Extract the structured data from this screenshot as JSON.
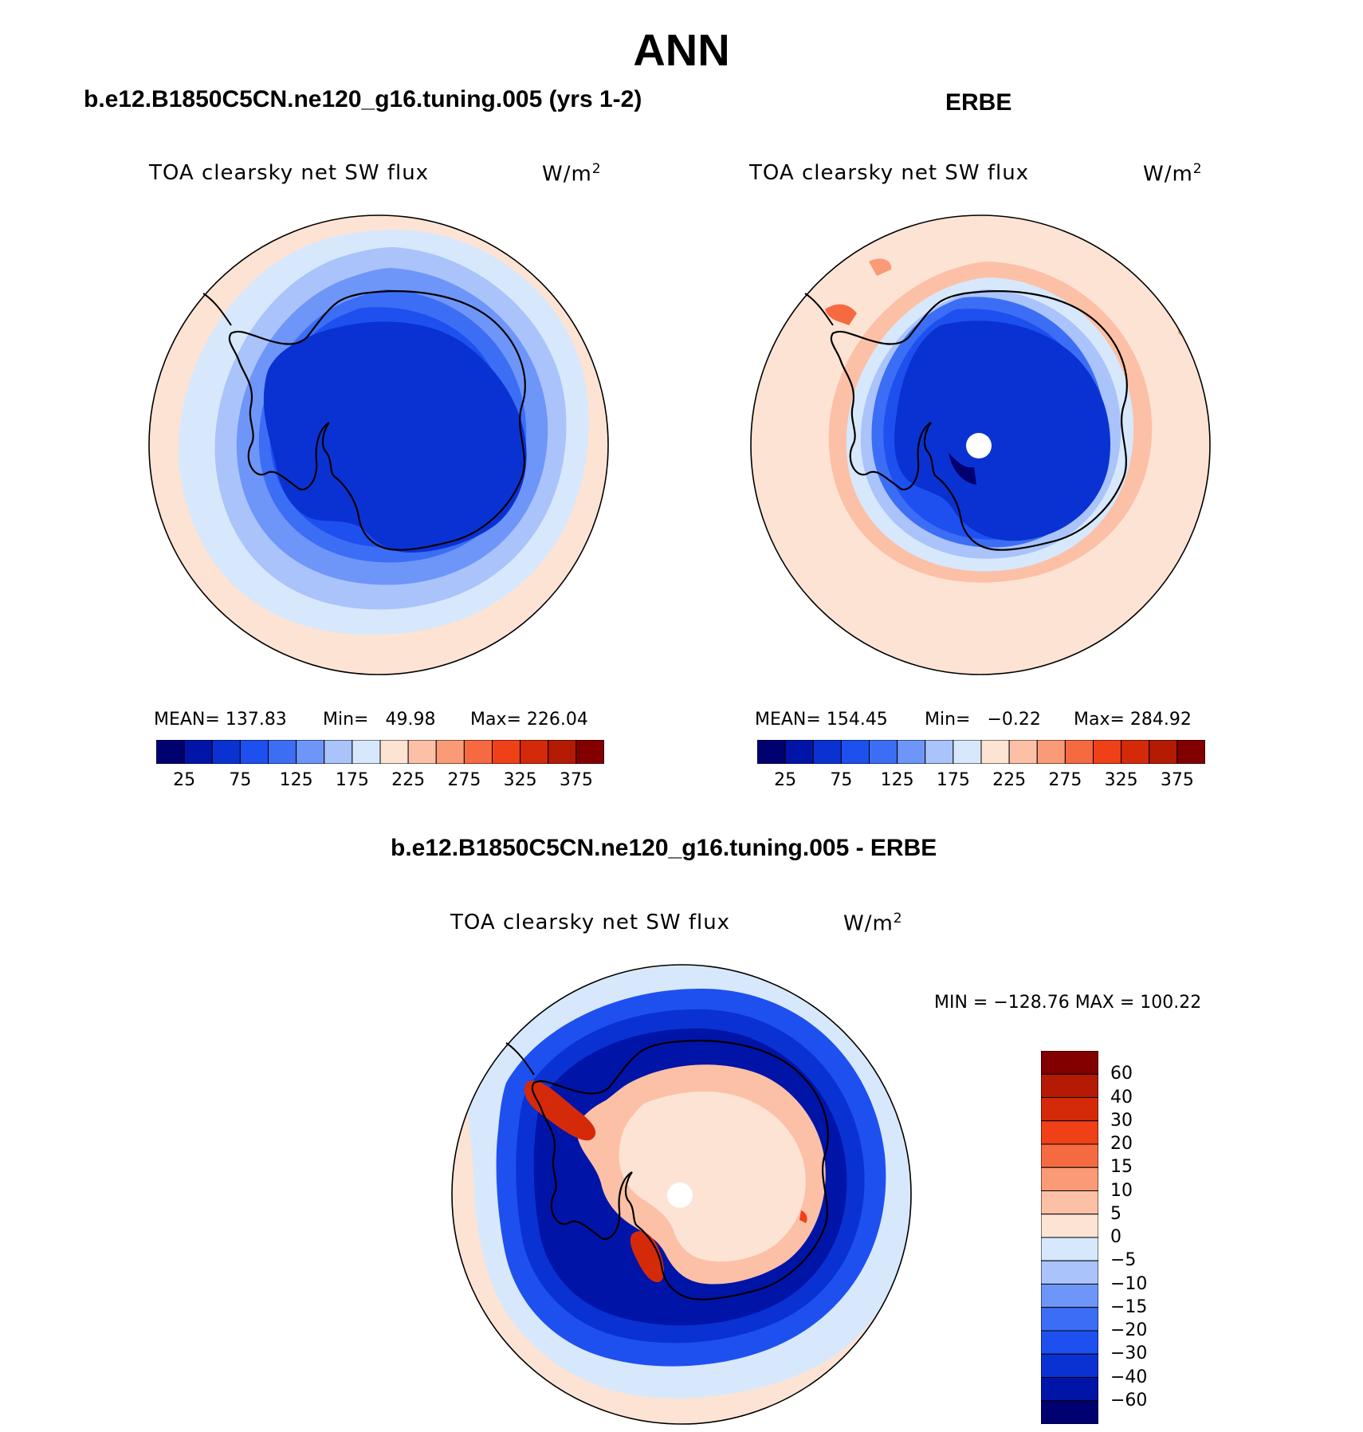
{
  "figure": {
    "title": "ANN"
  },
  "panels": {
    "model": {
      "heading": "b.e12.B1850C5CN.ne120_g16.tuning.005 (yrs 1-2)",
      "variable": "TOA clearsky net SW flux",
      "units_base": "W/m",
      "units_exp": "2",
      "mean_label": "MEAN=",
      "mean_value": "137.83",
      "min_label": "Min=",
      "min_value": "49.98",
      "max_label": "Max=",
      "max_value": "226.04"
    },
    "obs": {
      "heading": "ERBE",
      "variable": "TOA clearsky net SW flux",
      "units_base": "W/m",
      "units_exp": "2",
      "mean_label": "MEAN=",
      "mean_value": "154.45",
      "min_label": "Min=",
      "min_value": "−0.22",
      "max_label": "Max=",
      "max_value": "284.92"
    },
    "diff": {
      "heading": "b.e12.B1850C5CN.ne120_g16.tuning.005 - ERBE",
      "variable": "TOA clearsky net SW flux",
      "units_base": "W/m",
      "units_exp": "2",
      "minmax": "MIN = −128.76 MAX = 100.22"
    }
  },
  "colorbars": {
    "model": {
      "colors": [
        "#000070",
        "#0014a8",
        "#0a32d2",
        "#1e50f0",
        "#3c6ef5",
        "#6e96f8",
        "#aac3fa",
        "#d7e8fc",
        "#fde3d4",
        "#fcc0a6",
        "#fa9a76",
        "#f56a40",
        "#f04018",
        "#d52a0a",
        "#b41a04",
        "#820000"
      ],
      "tick_labels": [
        "25",
        "75",
        "125",
        "175",
        "225",
        "275",
        "325",
        "375"
      ]
    },
    "obs": {
      "colors": [
        "#000070",
        "#0014a8",
        "#0a32d2",
        "#1e50f0",
        "#3c6ef5",
        "#6e96f8",
        "#aac3fa",
        "#d7e8fc",
        "#fde3d4",
        "#fcc0a6",
        "#fa9a76",
        "#f56a40",
        "#f04018",
        "#d52a0a",
        "#b41a04",
        "#820000"
      ],
      "tick_labels": [
        "25",
        "75",
        "125",
        "175",
        "225",
        "275",
        "325",
        "375"
      ]
    },
    "diff": {
      "colors_top_to_bottom": [
        "#820000",
        "#b41a04",
        "#d52a0a",
        "#f04018",
        "#f56a40",
        "#fa9a76",
        "#fcc0a6",
        "#fde3d4",
        "#d7e8fc",
        "#aac3fa",
        "#6e96f8",
        "#3c6ef5",
        "#1e50f0",
        "#0a32d2",
        "#0014a8",
        "#000070"
      ],
      "tick_labels": [
        "60",
        "40",
        "30",
        "20",
        "15",
        "10",
        "5",
        "0",
        "−5",
        "−10",
        "−15",
        "−20",
        "−30",
        "−40",
        "−60"
      ]
    }
  }
}
